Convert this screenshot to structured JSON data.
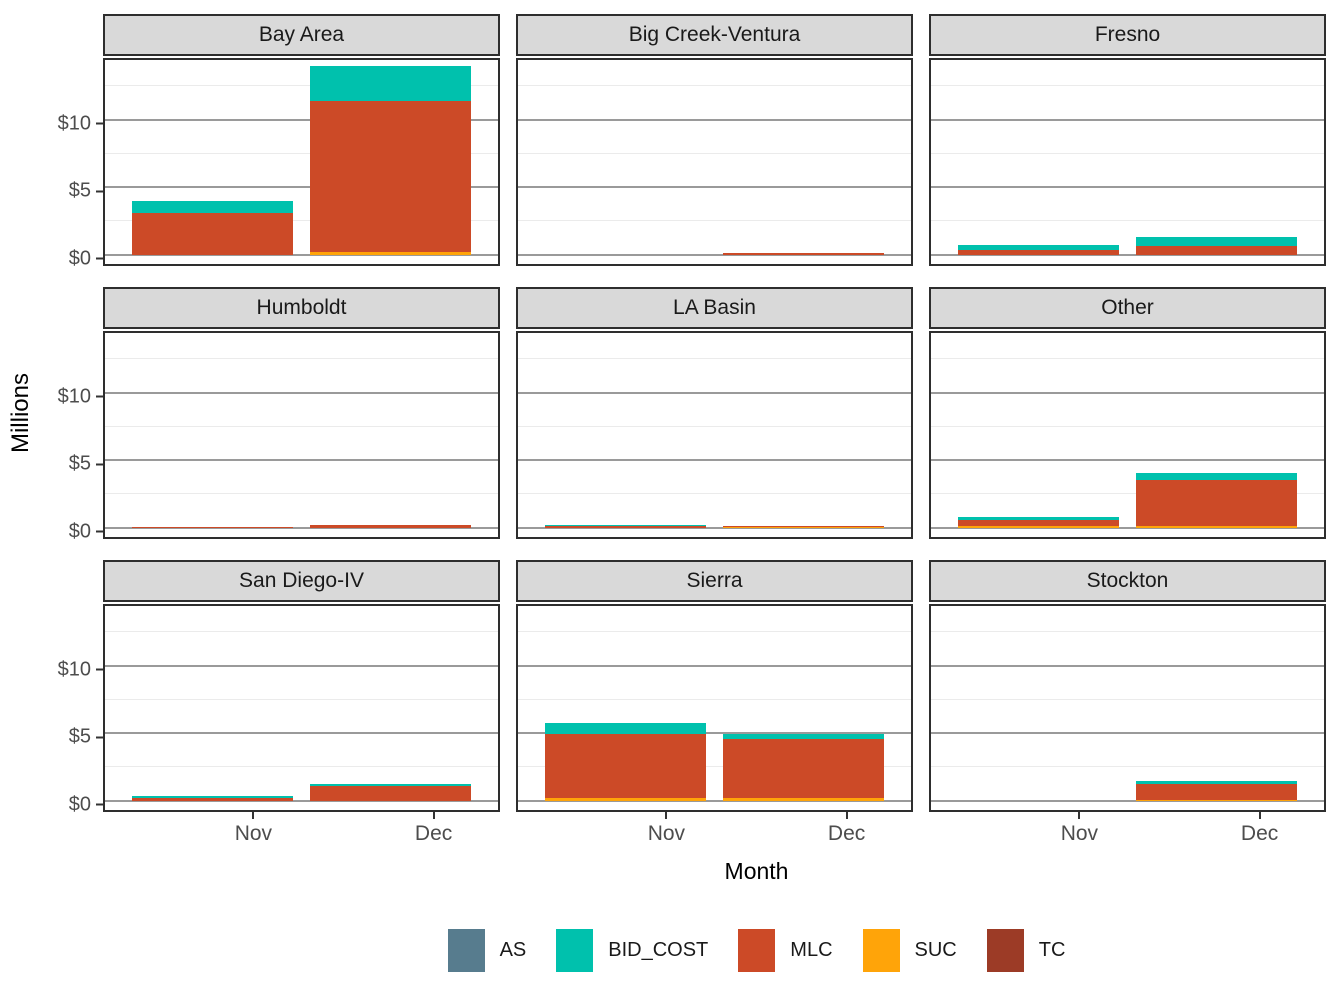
{
  "figure": {
    "y_axis_title": "Millions",
    "x_axis_title": "Month"
  },
  "colors": {
    "AS": "#577c8e",
    "BID_COST": "#00c1ad",
    "MLC": "#cc4a27",
    "SUC": "#ffa409",
    "TC": "#9c3b26"
  },
  "legend": {
    "items": [
      {
        "label": "AS",
        "key": "AS"
      },
      {
        "label": "BID_COST",
        "key": "BID_COST"
      },
      {
        "label": "MLC",
        "key": "MLC"
      },
      {
        "label": "SUC",
        "key": "SUC"
      },
      {
        "label": "TC",
        "key": "TC"
      }
    ]
  },
  "chart_data": {
    "type": "bar",
    "stacked": true,
    "categories": [
      "Nov",
      "Dec"
    ],
    "xlabel": "Month",
    "ylabel": "Millions",
    "ylim": [
      0,
      14.75
    ],
    "y_ticks": [
      {
        "label": "$0",
        "value": 0
      },
      {
        "label": "$5",
        "value": 5
      },
      {
        "label": "$10",
        "value": 10
      }
    ],
    "gridlines": {
      "major": [
        0,
        5,
        10
      ],
      "minor": [
        2.5,
        7.5,
        12.5
      ]
    },
    "legend_position": "bottom",
    "stack_order_bottom_to_top": [
      "TC",
      "SUC",
      "MLC",
      "BID_COST",
      "AS"
    ],
    "units": "millions USD",
    "facets": [
      {
        "name": "Bay Area",
        "series": {
          "AS": [
            0,
            0
          ],
          "BID_COST": [
            0.9,
            2.6
          ],
          "MLC": [
            3.1,
            11.2
          ],
          "SUC": [
            0,
            0.2
          ],
          "TC": [
            0,
            0
          ]
        }
      },
      {
        "name": "Big Creek-Ventura",
        "series": {
          "AS": [
            0,
            0
          ],
          "BID_COST": [
            0,
            0
          ],
          "MLC": [
            0,
            0.1
          ],
          "SUC": [
            0,
            0
          ],
          "TC": [
            0,
            0
          ]
        }
      },
      {
        "name": "Fresno",
        "series": {
          "AS": [
            0,
            0
          ],
          "BID_COST": [
            0.4,
            0.7
          ],
          "MLC": [
            0.3,
            0.6
          ],
          "SUC": [
            0,
            0
          ],
          "TC": [
            0,
            0
          ]
        }
      },
      {
        "name": "Humboldt",
        "series": {
          "AS": [
            0,
            0
          ],
          "BID_COST": [
            0,
            0
          ],
          "MLC": [
            0.05,
            0.15
          ],
          "SUC": [
            0,
            0
          ],
          "TC": [
            0,
            0
          ]
        }
      },
      {
        "name": "LA Basin",
        "series": {
          "AS": [
            0,
            0
          ],
          "BID_COST": [
            0.12,
            0
          ],
          "MLC": [
            0.08,
            0.04
          ],
          "SUC": [
            0,
            0.08
          ],
          "TC": [
            0,
            0
          ]
        }
      },
      {
        "name": "Other",
        "series": {
          "AS": [
            0,
            0
          ],
          "BID_COST": [
            0.25,
            0.55
          ],
          "MLC": [
            0.45,
            3.4
          ],
          "SUC": [
            0.08,
            0.1
          ],
          "TC": [
            0,
            0
          ]
        }
      },
      {
        "name": "San Diego-IV",
        "series": {
          "AS": [
            0,
            0
          ],
          "BID_COST": [
            0.15,
            0.15
          ],
          "MLC": [
            0.22,
            1.1
          ],
          "SUC": [
            0,
            0
          ],
          "TC": [
            0,
            0
          ]
        }
      },
      {
        "name": "Sierra",
        "series": {
          "AS": [
            0,
            0
          ],
          "BID_COST": [
            0.85,
            0.35
          ],
          "MLC": [
            4.75,
            4.35
          ],
          "SUC": [
            0.15,
            0.2
          ],
          "TC": [
            0,
            0
          ]
        }
      },
      {
        "name": "Stockton",
        "series": {
          "AS": [
            0,
            0
          ],
          "BID_COST": [
            0,
            0.2
          ],
          "MLC": [
            0,
            1.15
          ],
          "SUC": [
            0,
            0.07
          ],
          "TC": [
            0,
            0
          ]
        }
      }
    ]
  }
}
